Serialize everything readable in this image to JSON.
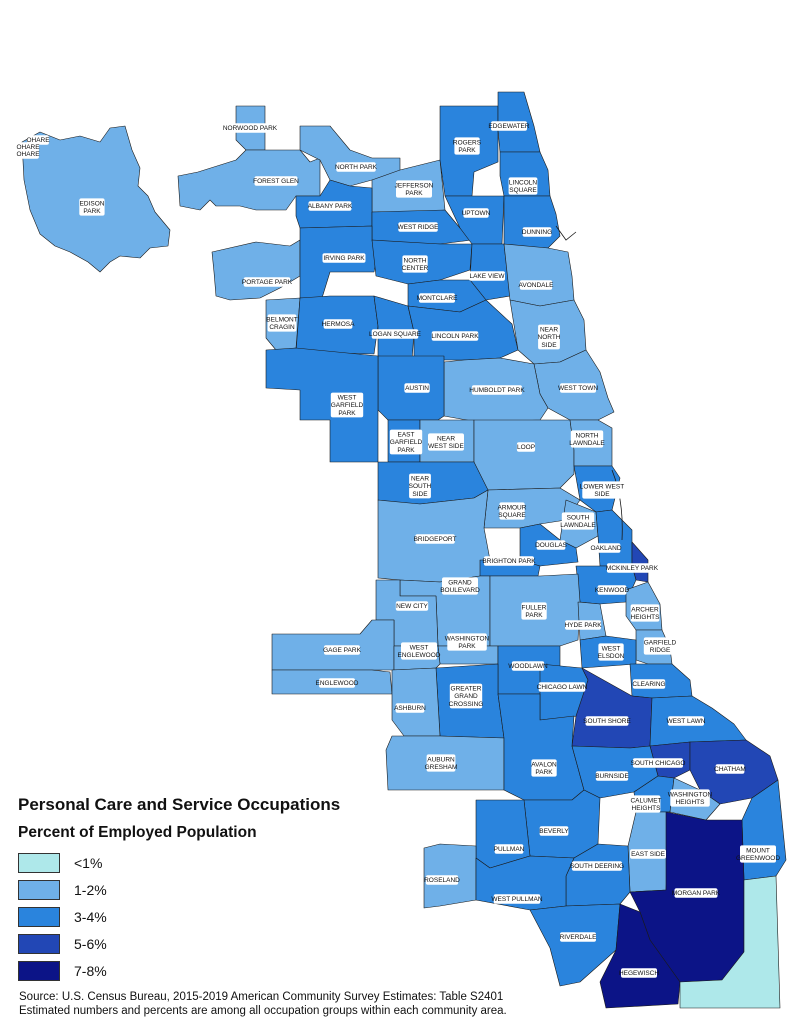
{
  "colors": {
    "lt1": "#aee8ea",
    "c1_2": "#6fb0e8",
    "c3_4": "#2a84dd",
    "c5_6": "#2247b5",
    "c7_8": "#0c1487",
    "border": "#1a1a1a"
  },
  "legend": {
    "title": "Personal Care and Service Occupations",
    "subtitle": "Percent of Employed Population",
    "items": [
      {
        "label": "<1%",
        "color": "#aee8ea"
      },
      {
        "label": "1-2%",
        "color": "#6fb0e8"
      },
      {
        "label": "3-4%",
        "color": "#2a84dd"
      },
      {
        "label": "5-6%",
        "color": "#2247b5"
      },
      {
        "label": "7-8%",
        "color": "#0c1487"
      }
    ]
  },
  "source": {
    "line1": "Source: U.S. Census Bureau, 2015-2019 American Community Survey Estimates: Table S2401",
    "line2": "Estimated numbers and percents are among all occupation groups within each community area."
  },
  "areas": [
    {
      "name": "OHARE",
      "bin": "1-2%"
    },
    {
      "name": "EDISON PARK",
      "bin": "1-2%"
    },
    {
      "name": "NORWOOD PARK",
      "bin": "1-2%"
    },
    {
      "name": "FOREST GLEN",
      "bin": "1-2%"
    },
    {
      "name": "NORTH PARK",
      "bin": "1-2%"
    },
    {
      "name": "JEFFERSON PARK",
      "bin": "3-4%"
    },
    {
      "name": "ALBANY PARK",
      "bin": "3-4%"
    },
    {
      "name": "WEST RIDGE",
      "bin": "3-4%"
    },
    {
      "name": "ROGERS PARK",
      "bin": "3-4%"
    },
    {
      "name": "EDGEWATER",
      "bin": "3-4%"
    },
    {
      "name": "LINCOLN SQUARE",
      "bin": "3-4%"
    },
    {
      "name": "UPTOWN",
      "bin": "3-4%"
    },
    {
      "name": "DUNNING",
      "bin": "1-2%"
    },
    {
      "name": "PORTAGE PARK",
      "bin": "3-4%"
    },
    {
      "name": "IRVING PARK",
      "bin": "3-4%"
    },
    {
      "name": "NORTH CENTER",
      "bin": "3-4%"
    },
    {
      "name": "LAKE VIEW",
      "bin": "1-2%"
    },
    {
      "name": "AVONDALE",
      "bin": "3-4%"
    },
    {
      "name": "MONTCLARE",
      "bin": "1-2%"
    },
    {
      "name": "BELMONT CRAGIN",
      "bin": "3-4%"
    },
    {
      "name": "HERMOSA",
      "bin": "3-4%"
    },
    {
      "name": "LOGAN SQUARE",
      "bin": "3-4%"
    },
    {
      "name": "LINCOLN PARK",
      "bin": "1-2%"
    },
    {
      "name": "NEAR NORTH SIDE",
      "bin": "1-2%"
    },
    {
      "name": "WEST TOWN",
      "bin": "1-2%"
    },
    {
      "name": "HUMBOLDT PARK",
      "bin": "3-4%"
    },
    {
      "name": "AUSTIN",
      "bin": "3-4%"
    },
    {
      "name": "WEST GARFIELD PARK",
      "bin": "3-4%"
    },
    {
      "name": "EAST GARFIELD PARK",
      "bin": "1-2%"
    },
    {
      "name": "NEAR WEST SIDE",
      "bin": "1-2%"
    },
    {
      "name": "LOOP",
      "bin": "1-2%"
    },
    {
      "name": "NORTH LAWNDALE",
      "bin": "3-4%"
    },
    {
      "name": "NEAR SOUTH SIDE",
      "bin": "3-4%"
    },
    {
      "name": "LOWER WEST SIDE",
      "bin": "1-2%"
    },
    {
      "name": "ARMOUR SQUARE",
      "bin": "1-2%"
    },
    {
      "name": "SOUTH LAWNDALE",
      "bin": "1-2%"
    },
    {
      "name": "BRIDGEPORT",
      "bin": "3-4%"
    },
    {
      "name": "DOUGLAS",
      "bin": "3-4%"
    },
    {
      "name": "OAKLAND",
      "bin": "5-6%"
    },
    {
      "name": "MCKINLEY PARK",
      "bin": "3-4%"
    },
    {
      "name": "BRIGHTON PARK",
      "bin": "1-2%"
    },
    {
      "name": "GRAND BOULEVARD",
      "bin": "3-4%"
    },
    {
      "name": "KENWOOD",
      "bin": "1-2%"
    },
    {
      "name": "ARCHER HEIGHTS",
      "bin": "1-2%"
    },
    {
      "name": "NEW CITY",
      "bin": "1-2%"
    },
    {
      "name": "FULLER PARK",
      "bin": "1-2%"
    },
    {
      "name": "HYDE PARK",
      "bin": "1-2%"
    },
    {
      "name": "GARFIELD RIDGE",
      "bin": "1-2%"
    },
    {
      "name": "GAGE PARK",
      "bin": "1-2%"
    },
    {
      "name": "WASHINGTON PARK",
      "bin": "3-4%"
    },
    {
      "name": "WEST ELSDON",
      "bin": "1-2%"
    },
    {
      "name": "WEST ENGLEWOOD",
      "bin": "3-4%"
    },
    {
      "name": "WOODLAWN",
      "bin": "3-4%"
    },
    {
      "name": "CLEARING",
      "bin": "1-2%"
    },
    {
      "name": "ENGLEWOOD",
      "bin": "3-4%"
    },
    {
      "name": "CHICAGO LAWN",
      "bin": "3-4%"
    },
    {
      "name": "GREATER GRAND CROSSING",
      "bin": "5-6%"
    },
    {
      "name": "SOUTH SHORE",
      "bin": "3-4%"
    },
    {
      "name": "WEST LAWN",
      "bin": "1-2%"
    },
    {
      "name": "ASHBURN",
      "bin": "1-2%"
    },
    {
      "name": "AUBURN GRESHAM",
      "bin": "3-4%"
    },
    {
      "name": "AVALON PARK",
      "bin": "5-6%"
    },
    {
      "name": "SOUTH CHICAGO",
      "bin": "5-6%"
    },
    {
      "name": "CHATHAM",
      "bin": "3-4%"
    },
    {
      "name": "BURNSIDE",
      "bin": "3-4%"
    },
    {
      "name": "CALUMET HEIGHTS",
      "bin": "1-2%"
    },
    {
      "name": "WASHINGTON HEIGHTS",
      "bin": "3-4%"
    },
    {
      "name": "BEVERLY",
      "bin": "3-4%"
    },
    {
      "name": "PULLMAN",
      "bin": "1-2%"
    },
    {
      "name": "EAST SIDE",
      "bin": "3-4%"
    },
    {
      "name": "MOUNT GREENWOOD",
      "bin": "1-2%"
    },
    {
      "name": "ROSELAND",
      "bin": "3-4%"
    },
    {
      "name": "SOUTH DEERING",
      "bin": "7-8%"
    },
    {
      "name": "MORGAN PARK",
      "bin": "3-4%"
    },
    {
      "name": "WEST PULLMAN",
      "bin": "3-4%"
    },
    {
      "name": "RIVERDALE",
      "bin": "7-8%"
    },
    {
      "name": "HEGEWISCH",
      "bin": "<1%"
    }
  ],
  "labels": [
    {
      "key": "OHARE",
      "lines": [
        "OHARE"
      ]
    },
    {
      "key": "OHARE",
      "lines": [
        "OHARE"
      ]
    },
    {
      "key": "OHARE",
      "lines": [
        "OHARE"
      ]
    },
    {
      "key": "EDISON PARK",
      "lines": [
        "EDISON",
        "PARK"
      ]
    },
    {
      "key": "NORWOOD PARK",
      "lines": [
        "NORWOOD PARK"
      ]
    },
    {
      "key": "FOREST GLEN",
      "lines": [
        "FOREST GLEN"
      ]
    },
    {
      "key": "NORTH PARK",
      "lines": [
        "NORTH PARK"
      ]
    },
    {
      "key": "JEFFERSON PARK",
      "lines": [
        "JEFFERSON",
        "PARK"
      ]
    },
    {
      "key": "ALBANY PARK",
      "lines": [
        "ALBANY PARK"
      ]
    },
    {
      "key": "WEST RIDGE",
      "lines": [
        "WEST RIDGE"
      ]
    },
    {
      "key": "ROGERS PARK",
      "lines": [
        "ROGERS",
        "PARK"
      ]
    },
    {
      "key": "EDGEWATER",
      "lines": [
        "EDGEWATER"
      ]
    },
    {
      "key": "LINCOLN SQUARE",
      "lines": [
        "LINCOLN",
        "SQUARE"
      ]
    },
    {
      "key": "UPTOWN",
      "lines": [
        "UPTOWN"
      ]
    },
    {
      "key": "DUNNING",
      "lines": [
        "DUNNING"
      ]
    },
    {
      "key": "PORTAGE PARK",
      "lines": [
        "PORTAGE PARK"
      ]
    },
    {
      "key": "IRVING PARK",
      "lines": [
        "IRVING PARK"
      ]
    },
    {
      "key": "NORTH CENTER",
      "lines": [
        "NORTH",
        "CENTER"
      ]
    },
    {
      "key": "LAKE VIEW",
      "lines": [
        "LAKE VIEW"
      ]
    },
    {
      "key": "AVONDALE",
      "lines": [
        "AVONDALE"
      ]
    },
    {
      "key": "MONTCLARE",
      "lines": [
        "MONTCLARE"
      ]
    },
    {
      "key": "BELMONT CRAGIN",
      "lines": [
        "BELMONT",
        "CRAGIN"
      ]
    },
    {
      "key": "HERMOSA",
      "lines": [
        "HERMOSA"
      ]
    },
    {
      "key": "LOGAN SQUARE",
      "lines": [
        "LOGAN SQUARE"
      ]
    },
    {
      "key": "LINCOLN PARK",
      "lines": [
        "LINCOLN PARK"
      ]
    },
    {
      "key": "NEAR NORTH SIDE",
      "lines": [
        "NEAR",
        "NORTH",
        "SIDE"
      ]
    },
    {
      "key": "WEST TOWN",
      "lines": [
        "WEST TOWN"
      ]
    },
    {
      "key": "HUMBOLDT PARK",
      "lines": [
        "HUMBOLDT PARK"
      ]
    },
    {
      "key": "AUSTIN",
      "lines": [
        "AUSTIN"
      ]
    },
    {
      "key": "WEST GARFIELD PARK",
      "lines": [
        "WEST",
        "GARFIELD",
        "PARK"
      ]
    },
    {
      "key": "EAST GARFIELD PARK",
      "lines": [
        "EAST",
        "GARFIELD",
        "PARK"
      ]
    },
    {
      "key": "NEAR WEST SIDE",
      "lines": [
        "NEAR",
        "WEST SIDE"
      ]
    },
    {
      "key": "LOOP",
      "lines": [
        "LOOP"
      ]
    },
    {
      "key": "NORTH LAWNDALE",
      "lines": [
        "NORTH",
        "LAWNDALE"
      ]
    },
    {
      "key": "NEAR SOUTH SIDE",
      "lines": [
        "NEAR",
        "SOUTH",
        "SIDE"
      ]
    },
    {
      "key": "LOWER WEST SIDE",
      "lines": [
        "LOWER WEST",
        "SIDE"
      ]
    },
    {
      "key": "ARMOUR SQUARE",
      "lines": [
        "ARMOUR",
        "SQUARE"
      ]
    },
    {
      "key": "SOUTH LAWNDALE",
      "lines": [
        "SOUTH",
        "LAWNDALE"
      ]
    },
    {
      "key": "BRIDGEPORT",
      "lines": [
        "BRIDGEPORT"
      ]
    },
    {
      "key": "DOUGLAS",
      "lines": [
        "DOUGLAS"
      ]
    },
    {
      "key": "OAKLAND",
      "lines": [
        "OAKLAND"
      ]
    },
    {
      "key": "MCKINLEY PARK",
      "lines": [
        "MCKINLEY PARK"
      ]
    },
    {
      "key": "BRIGHTON PARK",
      "lines": [
        "BRIGHTON PARK"
      ]
    },
    {
      "key": "GRAND BOULEVARD",
      "lines": [
        "GRAND",
        "BOULEVARD"
      ]
    },
    {
      "key": "KENWOOD",
      "lines": [
        "KENWOOD"
      ]
    },
    {
      "key": "ARCHER HEIGHTS",
      "lines": [
        "ARCHER",
        "HEIGHTS"
      ]
    },
    {
      "key": "NEW CITY",
      "lines": [
        "NEW CITY"
      ]
    },
    {
      "key": "FULLER PARK",
      "lines": [
        "FULLER",
        "PARK"
      ]
    },
    {
      "key": "HYDE PARK",
      "lines": [
        "HYDE PARK"
      ]
    },
    {
      "key": "GARFIELD RIDGE",
      "lines": [
        "GARFIELD",
        "RIDGE"
      ]
    },
    {
      "key": "GAGE PARK",
      "lines": [
        "GAGE PARK"
      ]
    },
    {
      "key": "WASHINGTON PARK",
      "lines": [
        "WASHINGTON",
        "PARK"
      ]
    },
    {
      "key": "WEST ELSDON",
      "lines": [
        "WEST",
        "ELSDON"
      ]
    },
    {
      "key": "WEST ENGLEWOOD",
      "lines": [
        "WEST",
        "ENGLEWOOD"
      ]
    },
    {
      "key": "WOODLAWN",
      "lines": [
        "WOODLAWN"
      ]
    },
    {
      "key": "CLEARING",
      "lines": [
        "CLEARING"
      ]
    },
    {
      "key": "ENGLEWOOD",
      "lines": [
        "ENGLEWOOD"
      ]
    },
    {
      "key": "CHICAGO LAWN",
      "lines": [
        "CHICAGO LAWN"
      ]
    },
    {
      "key": "GREATER GRAND CROSSING",
      "lines": [
        "GREATER",
        "GRAND",
        "CROSSING"
      ]
    },
    {
      "key": "SOUTH SHORE",
      "lines": [
        "SOUTH SHORE"
      ]
    },
    {
      "key": "WEST LAWN",
      "lines": [
        "WEST LAWN"
      ]
    },
    {
      "key": "ASHBURN",
      "lines": [
        "ASHBURN"
      ]
    },
    {
      "key": "AUBURN GRESHAM",
      "lines": [
        "AUBURN",
        "GRESHAM"
      ]
    },
    {
      "key": "AVALON PARK",
      "lines": [
        "AVALON",
        "PARK"
      ]
    },
    {
      "key": "SOUTH CHICAGO",
      "lines": [
        "SOUTH CHICAGO"
      ]
    },
    {
      "key": "CHATHAM",
      "lines": [
        "CHATHAM"
      ]
    },
    {
      "key": "BURNSIDE",
      "lines": [
        "BURNSIDE"
      ]
    },
    {
      "key": "CALUMET HEIGHTS",
      "lines": [
        "CALUMET",
        "HEIGHTS"
      ]
    },
    {
      "key": "WASHINGTON HEIGHTS",
      "lines": [
        "WASHINGTON",
        "HEIGHTS"
      ]
    },
    {
      "key": "BEVERLY",
      "lines": [
        "BEVERLY"
      ]
    },
    {
      "key": "PULLMAN",
      "lines": [
        "PULLMAN"
      ]
    },
    {
      "key": "EAST SIDE",
      "lines": [
        "EAST SIDE"
      ]
    },
    {
      "key": "MOUNT GREENWOOD",
      "lines": [
        "MOUNT",
        "GREENWOOD"
      ]
    },
    {
      "key": "ROSELAND",
      "lines": [
        "ROSELAND"
      ]
    },
    {
      "key": "SOUTH DEERING",
      "lines": [
        "SOUTH DEERING"
      ]
    },
    {
      "key": "MORGAN PARK",
      "lines": [
        "MORGAN PARK"
      ]
    },
    {
      "key": "WEST PULLMAN",
      "lines": [
        "WEST PULLMAN"
      ]
    },
    {
      "key": "RIVERDALE",
      "lines": [
        "RIVERDALE"
      ]
    },
    {
      "key": "HEGEWISCH",
      "lines": [
        "HEGEWISCH"
      ]
    }
  ]
}
